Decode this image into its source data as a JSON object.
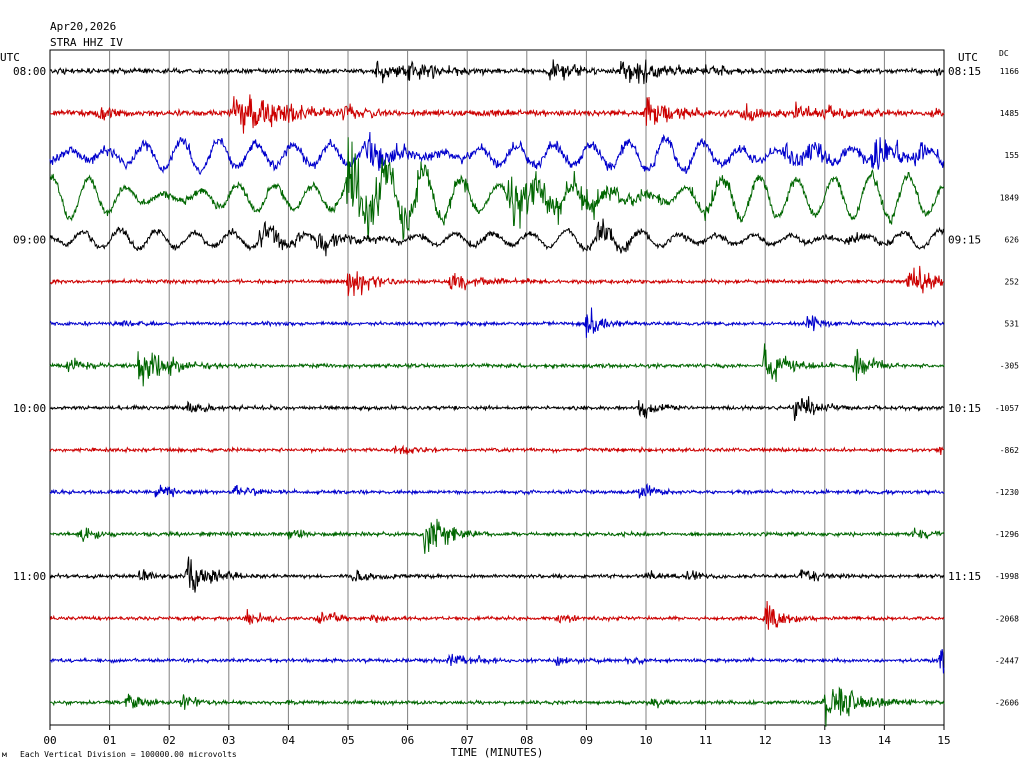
{
  "header": {
    "date": "Apr20,2026",
    "station": "STRA HHZ IV"
  },
  "chart_data": {
    "type": "line",
    "title": "STRA HHZ IV",
    "xlabel": "TIME (MINUTES)",
    "xlim": [
      0,
      15
    ],
    "x_ticks": [
      "00",
      "01",
      "02",
      "03",
      "04",
      "05",
      "06",
      "07",
      "08",
      "09",
      "10",
      "11",
      "12",
      "13",
      "14",
      "15"
    ],
    "left_axis_title": "UTC",
    "right_axis_title": "UTC",
    "dc_title": "DC",
    "footnote": "Each Vertical Division = 100000.00 microvolts",
    "grid": true,
    "traces": [
      {
        "left_label": "08:00",
        "right_label": "08:15",
        "dc": "1166",
        "color": "#000000",
        "amp": 4,
        "kind": "event",
        "events": [
          [
            5.5,
            10,
            0.7
          ],
          [
            6.0,
            12,
            0.5
          ],
          [
            8.4,
            11,
            0.6
          ],
          [
            9.6,
            14,
            0.6
          ],
          [
            9.9,
            9,
            0.5
          ],
          [
            11.0,
            6,
            0.5
          ],
          [
            14.9,
            6,
            0.3
          ]
        ]
      },
      {
        "left_label": "",
        "right_label": "",
        "dc": "1485",
        "color": "#cc0000",
        "amp": 5,
        "kind": "event",
        "events": [
          [
            0.8,
            10,
            0.3
          ],
          [
            3.1,
            18,
            0.9
          ],
          [
            3.6,
            12,
            0.6
          ],
          [
            4.9,
            10,
            0.4
          ],
          [
            10.0,
            16,
            0.5
          ],
          [
            11.6,
            8,
            0.5
          ],
          [
            12.5,
            8,
            0.5
          ],
          [
            13.0,
            8,
            0.4
          ],
          [
            14.8,
            6,
            0.4
          ]
        ]
      },
      {
        "left_label": "",
        "right_label": "",
        "dc": "155",
        "color": "#0000cc",
        "amp": 8,
        "kind": "swell",
        "swell": 14,
        "events": [
          [
            5.3,
            18,
            0.6
          ],
          [
            12.3,
            16,
            0.6
          ],
          [
            13.8,
            18,
            0.8
          ]
        ]
      },
      {
        "left_label": "",
        "right_label": "",
        "dc": "1849",
        "color": "#006600",
        "amp": 6,
        "kind": "swell",
        "swell": 22,
        "events": [
          [
            5.0,
            45,
            0.8
          ],
          [
            7.7,
            28,
            1.2
          ],
          [
            11.0,
            10,
            0.6
          ],
          [
            13.8,
            8,
            0.5
          ]
        ]
      },
      {
        "left_label": "09:00",
        "right_label": "09:15",
        "dc": "626",
        "color": "#000000",
        "amp": 5,
        "kind": "swell",
        "swell": 9,
        "events": [
          [
            3.5,
            12,
            0.7
          ],
          [
            4.5,
            10,
            0.6
          ],
          [
            9.2,
            14,
            0.4
          ],
          [
            13.4,
            6,
            0.3
          ]
        ]
      },
      {
        "left_label": "",
        "right_label": "",
        "dc": "252",
        "color": "#cc0000",
        "amp": 3,
        "kind": "event",
        "events": [
          [
            5.0,
            16,
            0.4
          ],
          [
            6.7,
            12,
            0.5
          ],
          [
            14.4,
            20,
            0.3
          ],
          [
            14.6,
            10,
            0.3
          ]
        ]
      },
      {
        "left_label": "",
        "right_label": "",
        "dc": "531",
        "color": "#0000cc",
        "amp": 3,
        "kind": "event",
        "events": [
          [
            1.2,
            4,
            0.4
          ],
          [
            9.0,
            16,
            0.3
          ],
          [
            12.7,
            10,
            0.3
          ]
        ]
      },
      {
        "left_label": "",
        "right_label": "",
        "dc": "-305",
        "color": "#006600",
        "amp": 3,
        "kind": "event",
        "events": [
          [
            0.3,
            10,
            0.3
          ],
          [
            1.5,
            22,
            0.5
          ],
          [
            12.0,
            20,
            0.4
          ],
          [
            13.5,
            16,
            0.3
          ]
        ]
      },
      {
        "left_label": "10:00",
        "right_label": "10:15",
        "dc": "-1057",
        "color": "#000000",
        "amp": 3,
        "kind": "event",
        "events": [
          [
            2.3,
            6,
            0.4
          ],
          [
            9.9,
            10,
            0.3
          ],
          [
            12.5,
            14,
            0.4
          ]
        ]
      },
      {
        "left_label": "",
        "right_label": "",
        "dc": "-862",
        "color": "#cc0000",
        "amp": 3,
        "kind": "event",
        "events": [
          [
            5.8,
            6,
            0.4
          ],
          [
            14.9,
            6,
            0.2
          ]
        ]
      },
      {
        "left_label": "",
        "right_label": "",
        "dc": "-1230",
        "color": "#0000cc",
        "amp": 3,
        "kind": "event",
        "events": [
          [
            1.8,
            8,
            0.4
          ],
          [
            3.1,
            8,
            0.3
          ],
          [
            9.9,
            10,
            0.3
          ]
        ]
      },
      {
        "left_label": "",
        "right_label": "",
        "dc": "-1296",
        "color": "#006600",
        "amp": 3,
        "kind": "event",
        "events": [
          [
            0.5,
            8,
            0.3
          ],
          [
            4.0,
            6,
            0.3
          ],
          [
            6.3,
            22,
            0.4
          ],
          [
            14.5,
            6,
            0.3
          ]
        ]
      },
      {
        "left_label": "11:00",
        "right_label": "11:15",
        "dc": "-1998",
        "color": "#000000",
        "amp": 3,
        "kind": "event",
        "events": [
          [
            1.5,
            8,
            0.3
          ],
          [
            2.3,
            18,
            0.4
          ],
          [
            5.1,
            8,
            0.4
          ],
          [
            10.0,
            6,
            0.3
          ],
          [
            10.7,
            6,
            0.3
          ],
          [
            12.6,
            8,
            0.3
          ]
        ]
      },
      {
        "left_label": "",
        "right_label": "",
        "dc": "-2068",
        "color": "#cc0000",
        "amp": 3,
        "kind": "event",
        "events": [
          [
            3.3,
            8,
            0.3
          ],
          [
            4.5,
            10,
            0.3
          ],
          [
            5.4,
            6,
            0.2
          ],
          [
            8.5,
            6,
            0.3
          ],
          [
            12.0,
            20,
            0.3
          ]
        ]
      },
      {
        "left_label": "",
        "right_label": "",
        "dc": "-2447",
        "color": "#0000cc",
        "amp": 3,
        "kind": "event",
        "events": [
          [
            6.7,
            8,
            0.3
          ],
          [
            7.2,
            6,
            0.2
          ],
          [
            8.5,
            6,
            0.3
          ],
          [
            9.7,
            6,
            0.2
          ],
          [
            14.95,
            22,
            0.2
          ]
        ]
      },
      {
        "left_label": "",
        "right_label": "",
        "dc": "-2606",
        "color": "#006600",
        "amp": 3,
        "kind": "event",
        "events": [
          [
            1.3,
            10,
            0.3
          ],
          [
            2.2,
            8,
            0.3
          ],
          [
            10.1,
            6,
            0.3
          ],
          [
            13.0,
            22,
            0.6
          ]
        ]
      }
    ]
  }
}
